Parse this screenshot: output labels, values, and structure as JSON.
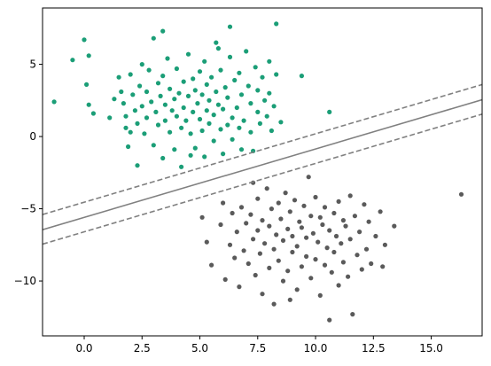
{
  "chart_data": {
    "type": "scatter",
    "title": "",
    "xlabel": "",
    "ylabel": "",
    "xlim": [
      -1.8,
      17.2
    ],
    "ylim": [
      -13.8,
      8.9
    ],
    "x_ticks": [
      0,
      2.5,
      5,
      7.5,
      10,
      12.5,
      15
    ],
    "x_tick_labels": [
      "0.0",
      "2.5",
      "5.0",
      "7.5",
      "10.0",
      "12.5",
      "15.0"
    ],
    "y_ticks": [
      5,
      0,
      -5,
      -10
    ],
    "y_tick_labels": [
      "5",
      "0",
      "−5",
      "−10"
    ],
    "grid": false,
    "legend": null,
    "colors": {
      "class_a": "#1b9e77",
      "class_b": "#5a5a5a",
      "boundary": "#808080",
      "axes": "#000000"
    },
    "series": [
      {
        "class": "a",
        "points": [
          [
            0.0,
            6.7
          ],
          [
            -0.5,
            5.3
          ],
          [
            -1.3,
            2.4
          ],
          [
            0.1,
            3.6
          ],
          [
            0.2,
            2.2
          ],
          [
            0.4,
            1.6
          ],
          [
            0.2,
            5.6
          ],
          [
            1.1,
            1.3
          ],
          [
            1.3,
            2.6
          ],
          [
            1.5,
            4.1
          ],
          [
            1.6,
            3.1
          ],
          [
            1.7,
            2.3
          ],
          [
            1.8,
            1.4
          ],
          [
            1.8,
            0.6
          ],
          [
            1.9,
            -0.7
          ],
          [
            2.0,
            4.3
          ],
          [
            2.1,
            2.9
          ],
          [
            2.2,
            1.8
          ],
          [
            2.3,
            0.9
          ],
          [
            2.3,
            -2.0
          ],
          [
            2.4,
            3.5
          ],
          [
            2.5,
            2.1
          ],
          [
            2.5,
            5.0
          ],
          [
            2.6,
            0.2
          ],
          [
            2.7,
            1.3
          ],
          [
            2.7,
            3.1
          ],
          [
            2.8,
            4.6
          ],
          [
            2.9,
            2.4
          ],
          [
            3.0,
            6.8
          ],
          [
            3.0,
            -0.6
          ],
          [
            3.1,
            1.7
          ],
          [
            3.2,
            3.7
          ],
          [
            3.2,
            0.8
          ],
          [
            3.3,
            2.8
          ],
          [
            3.4,
            -1.5
          ],
          [
            3.4,
            4.2
          ],
          [
            3.5,
            1.1
          ],
          [
            3.5,
            2.2
          ],
          [
            3.6,
            5.4
          ],
          [
            3.7,
            0.3
          ],
          [
            3.7,
            3.3
          ],
          [
            3.8,
            1.8
          ],
          [
            3.9,
            -0.9
          ],
          [
            3.9,
            2.6
          ],
          [
            4.0,
            4.7
          ],
          [
            4.0,
            1.4
          ],
          [
            4.1,
            3.0
          ],
          [
            4.2,
            0.6
          ],
          [
            4.2,
            -2.1
          ],
          [
            4.3,
            2.0
          ],
          [
            4.3,
            3.8
          ],
          [
            4.4,
            1.1
          ],
          [
            4.5,
            5.7
          ],
          [
            4.5,
            2.8
          ],
          [
            4.6,
            0.2
          ],
          [
            4.7,
            1.7
          ],
          [
            4.7,
            4.0
          ],
          [
            4.8,
            3.2
          ],
          [
            4.8,
            -0.8
          ],
          [
            4.9,
            2.3
          ],
          [
            5.0,
            1.2
          ],
          [
            5.0,
            4.5
          ],
          [
            5.1,
            0.4
          ],
          [
            5.1,
            2.9
          ],
          [
            5.2,
            5.2
          ],
          [
            5.2,
            -1.4
          ],
          [
            5.3,
            1.8
          ],
          [
            5.3,
            3.6
          ],
          [
            5.4,
            0.9
          ],
          [
            5.4,
            2.5
          ],
          [
            5.5,
            4.1
          ],
          [
            5.6,
            -0.3
          ],
          [
            5.6,
            1.5
          ],
          [
            5.7,
            3.1
          ],
          [
            5.7,
            6.5
          ],
          [
            5.8,
            2.2
          ],
          [
            5.9,
            0.5
          ],
          [
            5.9,
            4.6
          ],
          [
            6.0,
            1.9
          ],
          [
            6.0,
            -1.2
          ],
          [
            6.1,
            3.4
          ],
          [
            6.2,
            0.8
          ],
          [
            6.2,
            2.7
          ],
          [
            6.3,
            5.5
          ],
          [
            6.4,
            1.3
          ],
          [
            6.4,
            -0.2
          ],
          [
            6.5,
            3.9
          ],
          [
            6.6,
            2.0
          ],
          [
            6.7,
            0.6
          ],
          [
            6.7,
            4.4
          ],
          [
            6.8,
            2.9
          ],
          [
            6.9,
            1.1
          ],
          [
            7.0,
            5.9
          ],
          [
            7.1,
            3.5
          ],
          [
            7.2,
            0.3
          ],
          [
            7.2,
            2.3
          ],
          [
            7.3,
            -1.0
          ],
          [
            7.4,
            4.8
          ],
          [
            7.5,
            1.7
          ],
          [
            7.5,
            3.2
          ],
          [
            7.6,
            0.9
          ],
          [
            7.7,
            4.1
          ],
          [
            7.8,
            2.5
          ],
          [
            7.9,
            1.4
          ],
          [
            8.0,
            5.2
          ],
          [
            8.0,
            3.0
          ],
          [
            8.1,
            0.4
          ],
          [
            8.2,
            2.1
          ],
          [
            8.3,
            4.3
          ],
          [
            8.3,
            7.8
          ],
          [
            8.5,
            1.0
          ],
          [
            9.4,
            4.2
          ],
          [
            10.6,
            1.7
          ],
          [
            6.3,
            7.6
          ],
          [
            3.4,
            7.3
          ],
          [
            2.0,
            0.3
          ],
          [
            4.6,
            -1.3
          ],
          [
            5.8,
            6.1
          ],
          [
            6.8,
            -0.9
          ]
        ]
      },
      {
        "class": "b",
        "points": [
          [
            5.1,
            -5.6
          ],
          [
            5.3,
            -7.3
          ],
          [
            5.5,
            -8.9
          ],
          [
            5.9,
            -6.1
          ],
          [
            6.0,
            -4.6
          ],
          [
            6.1,
            -9.9
          ],
          [
            6.3,
            -7.5
          ],
          [
            6.4,
            -5.3
          ],
          [
            6.5,
            -8.4
          ],
          [
            6.6,
            -6.6
          ],
          [
            6.7,
            -10.4
          ],
          [
            6.8,
            -4.9
          ],
          [
            6.9,
            -7.9
          ],
          [
            7.0,
            -6.0
          ],
          [
            7.1,
            -8.8
          ],
          [
            7.2,
            -5.4
          ],
          [
            7.3,
            -7.1
          ],
          [
            7.4,
            -9.6
          ],
          [
            7.5,
            -4.3
          ],
          [
            7.5,
            -6.5
          ],
          [
            7.6,
            -8.1
          ],
          [
            7.7,
            -5.8
          ],
          [
            7.7,
            -10.9
          ],
          [
            7.8,
            -7.4
          ],
          [
            7.9,
            -3.6
          ],
          [
            8.0,
            -6.2
          ],
          [
            8.0,
            -9.1
          ],
          [
            8.1,
            -5.0
          ],
          [
            8.2,
            -7.8
          ],
          [
            8.2,
            -11.6
          ],
          [
            8.3,
            -6.8
          ],
          [
            8.4,
            -4.6
          ],
          [
            8.4,
            -8.6
          ],
          [
            8.5,
            -5.7
          ],
          [
            8.6,
            -10.0
          ],
          [
            8.6,
            -7.2
          ],
          [
            8.7,
            -3.9
          ],
          [
            8.8,
            -6.4
          ],
          [
            8.8,
            -9.3
          ],
          [
            8.9,
            -5.2
          ],
          [
            9.0,
            -8.0
          ],
          [
            9.0,
            -6.9
          ],
          [
            9.1,
            -4.4
          ],
          [
            9.2,
            -10.6
          ],
          [
            9.2,
            -7.6
          ],
          [
            9.3,
            -5.9
          ],
          [
            9.4,
            -9.0
          ],
          [
            9.4,
            -6.3
          ],
          [
            9.5,
            -4.8
          ],
          [
            9.6,
            -8.3
          ],
          [
            9.6,
            -7.0
          ],
          [
            9.7,
            -2.8
          ],
          [
            9.8,
            -5.5
          ],
          [
            9.8,
            -9.8
          ],
          [
            9.9,
            -6.7
          ],
          [
            10.0,
            -8.5
          ],
          [
            10.0,
            -4.2
          ],
          [
            10.1,
            -7.3
          ],
          [
            10.2,
            -5.6
          ],
          [
            10.2,
            -11.0
          ],
          [
            10.3,
            -6.1
          ],
          [
            10.4,
            -8.9
          ],
          [
            10.4,
            -4.9
          ],
          [
            10.5,
            -7.7
          ],
          [
            10.6,
            -12.7
          ],
          [
            10.6,
            -6.5
          ],
          [
            10.7,
            -9.4
          ],
          [
            10.8,
            -5.3
          ],
          [
            10.8,
            -8.0
          ],
          [
            10.9,
            -6.9
          ],
          [
            11.0,
            -4.5
          ],
          [
            11.0,
            -10.3
          ],
          [
            11.1,
            -7.4
          ],
          [
            11.2,
            -5.8
          ],
          [
            11.2,
            -8.7
          ],
          [
            11.3,
            -6.2
          ],
          [
            11.4,
            -9.7
          ],
          [
            11.5,
            -4.1
          ],
          [
            11.5,
            -7.1
          ],
          [
            11.6,
            -12.3
          ],
          [
            11.7,
            -5.5
          ],
          [
            11.8,
            -8.2
          ],
          [
            11.9,
            -6.6
          ],
          [
            12.0,
            -9.2
          ],
          [
            12.1,
            -4.7
          ],
          [
            12.2,
            -7.8
          ],
          [
            12.3,
            -5.9
          ],
          [
            12.4,
            -8.8
          ],
          [
            12.6,
            -6.9
          ],
          [
            12.8,
            -5.2
          ],
          [
            13.0,
            -7.5
          ],
          [
            13.4,
            -6.2
          ],
          [
            16.3,
            -4.0
          ],
          [
            8.9,
            -11.3
          ],
          [
            7.3,
            -3.2
          ],
          [
            12.9,
            -9.0
          ]
        ]
      }
    ],
    "lines": [
      {
        "role": "decision-boundary",
        "style": "solid",
        "points": [
          [
            -1.8,
            -6.45
          ],
          [
            17.2,
            2.55
          ]
        ]
      },
      {
        "role": "margin-upper",
        "style": "dashed",
        "points": [
          [
            -1.8,
            -5.4
          ],
          [
            17.2,
            3.6
          ]
        ]
      },
      {
        "role": "margin-lower",
        "style": "dashed",
        "points": [
          [
            -1.8,
            -7.45
          ],
          [
            17.2,
            1.55
          ]
        ]
      }
    ]
  }
}
